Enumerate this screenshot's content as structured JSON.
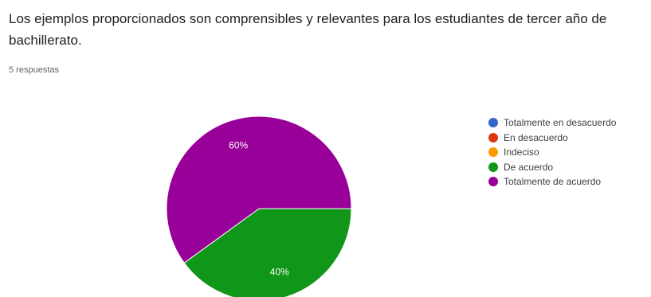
{
  "question": {
    "title": "Los ejemplos proporcionados son comprensibles y relevantes para los estudiantes de tercer año de bachillerato.",
    "responses": "5 respuestas"
  },
  "chart_data": {
    "type": "pie",
    "categories": [
      "Totalmente en desacuerdo",
      "En desacuerdo",
      "Indeciso",
      "De acuerdo",
      "Totalmente de acuerdo"
    ],
    "values": [
      0,
      0,
      0,
      40,
      60
    ],
    "value_labels": [
      "",
      "",
      "",
      "40%",
      "60%"
    ],
    "colors": [
      "#3366cc",
      "#dc3912",
      "#ff9900",
      "#109618",
      "#990099"
    ],
    "unit": "%",
    "legend_position": "right"
  }
}
